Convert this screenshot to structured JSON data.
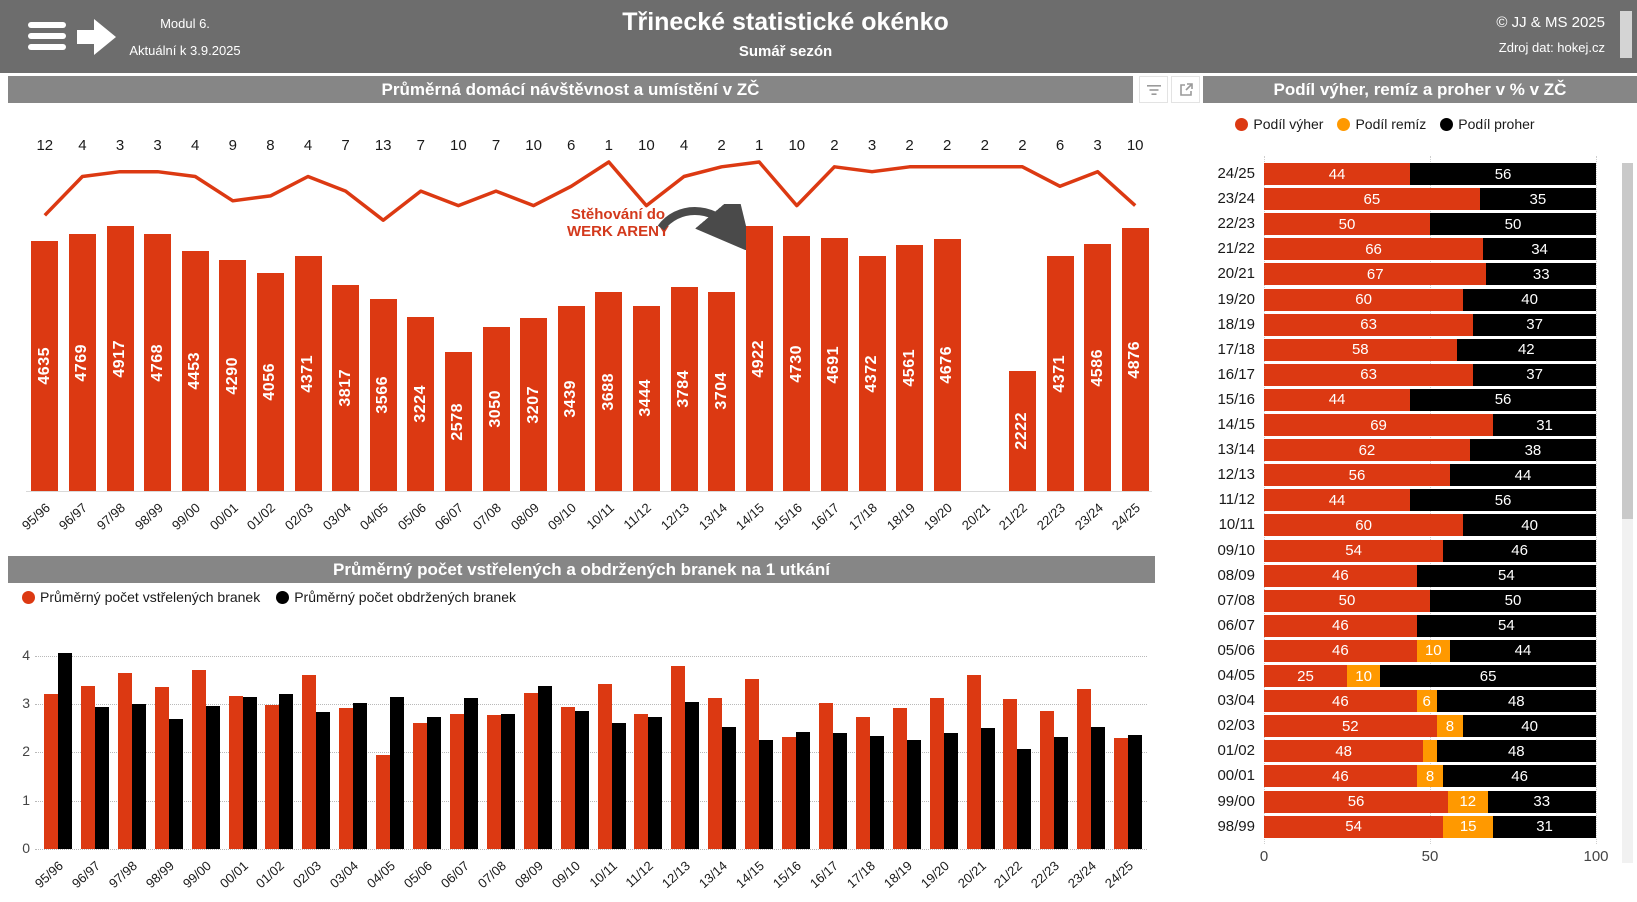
{
  "banner": {
    "module": "Modul 6.",
    "updated": "Aktuální k 3.9.2025",
    "title": "Třinecké statistické okénko",
    "subtitle": "Sumář sezón",
    "copyright": "© JJ & MS 2025",
    "source": "Zdroj dat: hokej.cz"
  },
  "colors": {
    "red": "#dc3912",
    "orange": "#ff9900",
    "black": "#000000",
    "banner_gray": "#6d6d6d",
    "header_gray": "#868686",
    "arrow_gray": "#4a4a4a"
  },
  "attendance_chart": {
    "header": "Průměrná domácí návštěvnost a umístění v ZČ",
    "annotation": {
      "line1": "Stěhování do",
      "line2": "WERK ARENY"
    }
  },
  "goals_chart": {
    "header": "Průměrný počet vstřelených a obdržených branek na 1 utkání",
    "legend": [
      "Průměrný počet vstřelených branek",
      "Průměrný počet obdržených branek"
    ]
  },
  "results_chart": {
    "header": "Podíl výher, remíz a proher v % v ZČ",
    "legend": [
      "Podíl výher",
      "Podíl remíz",
      "Podíl proher"
    ]
  },
  "chart_data": [
    {
      "id": "attendance",
      "type": "bar",
      "title": "Průměrná domácí návštěvnost a umístění v ZČ",
      "categories": [
        "95/96",
        "96/97",
        "97/98",
        "98/99",
        "99/00",
        "00/01",
        "01/02",
        "02/03",
        "03/04",
        "04/05",
        "05/06",
        "06/07",
        "07/08",
        "08/09",
        "09/10",
        "10/11",
        "11/12",
        "12/13",
        "13/14",
        "14/15",
        "15/16",
        "16/17",
        "17/18",
        "18/19",
        "19/20",
        "20/21",
        "21/22",
        "22/23",
        "23/24",
        "24/25"
      ],
      "series": [
        {
          "name": "Průměrná domácí návštěvnost",
          "type": "bar",
          "values": [
            4635,
            4769,
            4917,
            4768,
            4453,
            4290,
            4056,
            4371,
            3817,
            3566,
            3224,
            2578,
            3050,
            3207,
            3439,
            3688,
            3444,
            3784,
            3704,
            4922,
            4730,
            4691,
            4372,
            4561,
            4676,
            null,
            2222,
            4371,
            4586,
            4876
          ]
        },
        {
          "name": "Umístění v ZČ",
          "type": "line",
          "values": [
            12,
            4,
            3,
            3,
            4,
            9,
            8,
            4,
            7,
            13,
            7,
            10,
            7,
            10,
            6,
            1,
            10,
            4,
            2,
            1,
            10,
            2,
            3,
            2,
            2,
            2,
            2,
            6,
            3,
            10
          ]
        }
      ],
      "annotation": "Stěhování do WERK ARENY (sezóna 14/15)",
      "legend_position": "none"
    },
    {
      "id": "goals",
      "type": "bar",
      "title": "Průměrný počet vstřelených a obdržených branek na 1 utkání",
      "categories": [
        "95/96",
        "96/97",
        "97/98",
        "98/99",
        "99/00",
        "00/01",
        "01/02",
        "02/03",
        "03/04",
        "04/05",
        "05/06",
        "06/07",
        "07/08",
        "08/09",
        "09/10",
        "10/11",
        "11/12",
        "12/13",
        "13/14",
        "14/15",
        "15/16",
        "16/17",
        "17/18",
        "18/19",
        "19/20",
        "20/21",
        "21/22",
        "22/23",
        "23/24",
        "24/25"
      ],
      "series": [
        {
          "name": "Průměrný počet vstřelených branek",
          "values": [
            3.2,
            3.38,
            3.65,
            3.35,
            3.7,
            3.17,
            2.98,
            3.6,
            2.92,
            1.95,
            2.6,
            2.8,
            2.78,
            3.22,
            2.93,
            3.42,
            2.8,
            3.78,
            3.13,
            3.52,
            2.32,
            3.03,
            2.74,
            2.92,
            3.12,
            3.6,
            3.1,
            2.85,
            3.31,
            2.3
          ]
        },
        {
          "name": "Průměrný počet obdržených branek",
          "values": [
            4.05,
            2.93,
            3.0,
            2.7,
            2.97,
            3.15,
            3.2,
            2.83,
            3.03,
            3.15,
            2.73,
            3.12,
            2.8,
            3.38,
            2.85,
            2.61,
            2.74,
            3.05,
            2.52,
            2.25,
            2.42,
            2.4,
            2.33,
            2.25,
            2.4,
            2.5,
            2.08,
            2.32,
            2.53,
            2.37
          ]
        }
      ],
      "ylabel": "",
      "ylim": [
        0,
        4
      ],
      "y_ticks": [
        0,
        1,
        2,
        3,
        4
      ],
      "grid": "dotted",
      "legend_position": "top-left"
    },
    {
      "id": "results",
      "type": "stacked-bar-horizontal",
      "title": "Podíl výher, remíz a proher v % v ZČ",
      "categories": [
        "24/25",
        "23/24",
        "22/23",
        "21/22",
        "20/21",
        "19/20",
        "18/19",
        "17/18",
        "16/17",
        "15/16",
        "14/15",
        "13/14",
        "12/13",
        "11/12",
        "10/11",
        "09/10",
        "08/09",
        "07/08",
        "06/07",
        "05/06",
        "04/05",
        "03/04",
        "02/03",
        "01/02",
        "00/01",
        "99/00",
        "98/99"
      ],
      "series": [
        {
          "name": "Podíl výher",
          "values": [
            44,
            65,
            50,
            66,
            67,
            60,
            63,
            58,
            63,
            44,
            69,
            62,
            56,
            44,
            60,
            54,
            46,
            50,
            46,
            46,
            25,
            46,
            52,
            48,
            46,
            56,
            54
          ]
        },
        {
          "name": "Podíl remíz",
          "values": [
            0,
            0,
            0,
            0,
            0,
            0,
            0,
            0,
            0,
            0,
            0,
            0,
            0,
            0,
            0,
            0,
            0,
            0,
            0,
            10,
            10,
            6,
            8,
            4,
            8,
            12,
            15
          ]
        },
        {
          "name": "Podíl proher",
          "values": [
            56,
            35,
            50,
            34,
            33,
            40,
            37,
            42,
            37,
            56,
            31,
            38,
            44,
            56,
            40,
            46,
            54,
            50,
            54,
            44,
            65,
            48,
            40,
            48,
            46,
            33,
            31
          ]
        }
      ],
      "xlim": [
        0,
        100
      ],
      "x_ticks": [
        0,
        50,
        100
      ],
      "legend_position": "top"
    }
  ]
}
